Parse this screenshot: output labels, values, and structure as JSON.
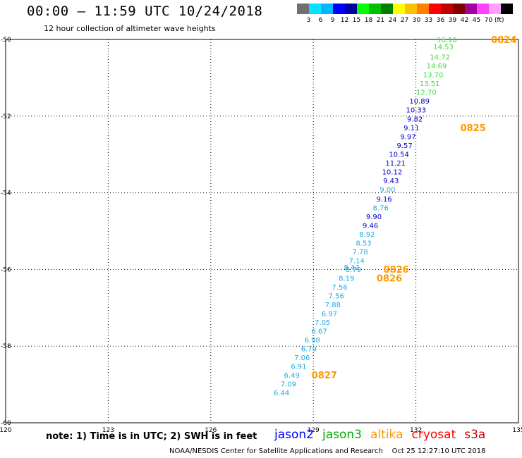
{
  "header": {
    "title": "00:00 – 11:59 UTC 10/24/2018",
    "subtitle": "12 hour collection of altimeter wave heights"
  },
  "scale": {
    "colors": [
      "#707070",
      "#00e5ff",
      "#00b8ff",
      "#0000ff",
      "#0000a0",
      "#00ff00",
      "#00c000",
      "#008000",
      "#ffff00",
      "#ffc000",
      "#ff8000",
      "#ff0000",
      "#c00000",
      "#800000",
      "#a000a0",
      "#ff40ff",
      "#ffa0ff",
      "#000000"
    ],
    "labels": [
      "3",
      "6",
      "9",
      "12",
      "15",
      "18",
      "21",
      "24",
      "27",
      "30",
      "33",
      "36",
      "39",
      "42",
      "45",
      "70"
    ],
    "unit": "(ft)"
  },
  "chart_data": {
    "type": "scatter",
    "x_ticks": [
      "120",
      "123",
      "126",
      "129",
      "132",
      "135"
    ],
    "y_ticks": [
      "-50",
      "-52",
      "-54",
      "-56",
      "-58",
      "-60"
    ],
    "xlim": [
      120,
      135
    ],
    "ylim": [
      -60,
      -50
    ],
    "grid": true,
    "series": [
      {
        "name": "jason3",
        "color": "#44dd44",
        "points": [
          {
            "x": 133.2,
            "y": -50.0,
            "label": "16.10"
          },
          {
            "x": 133.1,
            "y": -50.18,
            "label": "14.53"
          },
          {
            "x": 133.0,
            "y": -50.45,
            "label": "14.72"
          },
          {
            "x": 132.9,
            "y": -50.68,
            "label": "14.69"
          },
          {
            "x": 132.8,
            "y": -50.91,
            "label": "13.70"
          },
          {
            "x": 132.7,
            "y": -51.14,
            "label": "13.51"
          },
          {
            "x": 132.6,
            "y": -51.37,
            "label": "12.70"
          }
        ]
      },
      {
        "name": "jason2",
        "color": "#0000cc",
        "points": [
          {
            "x": 132.4,
            "y": -51.6,
            "label": "10.89"
          },
          {
            "x": 132.3,
            "y": -51.83,
            "label": "10.33"
          },
          {
            "x": 132.2,
            "y": -52.07,
            "label": "9.82"
          },
          {
            "x": 132.1,
            "y": -52.3,
            "label": "9.11"
          },
          {
            "x": 132.0,
            "y": -52.53,
            "label": "9.97"
          },
          {
            "x": 131.9,
            "y": -52.76,
            "label": "9.57"
          },
          {
            "x": 131.8,
            "y": -52.99,
            "label": "10.54"
          },
          {
            "x": 131.7,
            "y": -53.22,
            "label": "11.21"
          },
          {
            "x": 131.6,
            "y": -53.45,
            "label": "10.12"
          },
          {
            "x": 131.5,
            "y": -53.68,
            "label": "9.43"
          },
          {
            "x": 131.3,
            "y": -54.15,
            "label": "9.16"
          },
          {
            "x": 131.0,
            "y": -54.61,
            "label": "9.90"
          },
          {
            "x": 130.9,
            "y": -54.84,
            "label": "9.46"
          }
        ]
      },
      {
        "name": "altika",
        "color": "#22aadd",
        "points": [
          {
            "x": 131.4,
            "y": -53.91,
            "label": "9.00"
          },
          {
            "x": 131.2,
            "y": -54.38,
            "label": "8.76"
          },
          {
            "x": 130.8,
            "y": -55.07,
            "label": "8.92"
          },
          {
            "x": 130.7,
            "y": -55.3,
            "label": "8.53"
          },
          {
            "x": 130.6,
            "y": -55.53,
            "label": "7.78"
          },
          {
            "x": 130.5,
            "y": -55.76,
            "label": "7.14"
          },
          {
            "x": 130.4,
            "y": -55.99,
            "label": "8.79"
          },
          {
            "x": 130.35,
            "y": -55.94,
            "label": "8.42"
          },
          {
            "x": 130.2,
            "y": -56.22,
            "label": "8.19"
          },
          {
            "x": 130.0,
            "y": -56.45,
            "label": "7.56"
          },
          {
            "x": 129.9,
            "y": -56.68,
            "label": "7.56"
          },
          {
            "x": 129.8,
            "y": -56.91,
            "label": "7.88"
          },
          {
            "x": 129.7,
            "y": -57.14,
            "label": "6.97"
          },
          {
            "x": 129.5,
            "y": -57.37,
            "label": "7.05"
          },
          {
            "x": 129.4,
            "y": -57.6,
            "label": "6.67"
          },
          {
            "x": 129.2,
            "y": -57.83,
            "label": "6.98"
          },
          {
            "x": 129.1,
            "y": -58.06,
            "label": "6.79"
          },
          {
            "x": 128.9,
            "y": -58.29,
            "label": "7.06"
          },
          {
            "x": 128.8,
            "y": -58.52,
            "label": "6.91"
          },
          {
            "x": 128.6,
            "y": -58.75,
            "label": "6.49"
          },
          {
            "x": 128.5,
            "y": -58.98,
            "label": "7.09"
          },
          {
            "x": 128.3,
            "y": -59.21,
            "label": "6.44"
          }
        ]
      }
    ],
    "date_tags": [
      {
        "x": 134.2,
        "y": -50.0,
        "label": "0824"
      },
      {
        "x": 133.3,
        "y": -52.3,
        "label": "0825"
      },
      {
        "x": 131.05,
        "y": -55.99,
        "label": "0826"
      },
      {
        "x": 130.85,
        "y": -56.22,
        "label": "0826"
      },
      {
        "x": 128.95,
        "y": -58.75,
        "label": "0827"
      }
    ]
  },
  "footer": {
    "note": "note: 1) Time is in UTC; 2) SWH is in feet",
    "satellites": [
      {
        "label": "jason2",
        "color": "#0000ff"
      },
      {
        "label": "jason3",
        "color": "#00aa00"
      },
      {
        "label": "altika",
        "color": "#ff9900"
      },
      {
        "label": "cryosat",
        "color": "#ff0000"
      },
      {
        "label": "s3a",
        "color": "#cc0000"
      }
    ],
    "credit": "NOAA/NESDIS Center for Satellite Applications and Research    Oct 25 12:27:10 UTC 2018"
  }
}
